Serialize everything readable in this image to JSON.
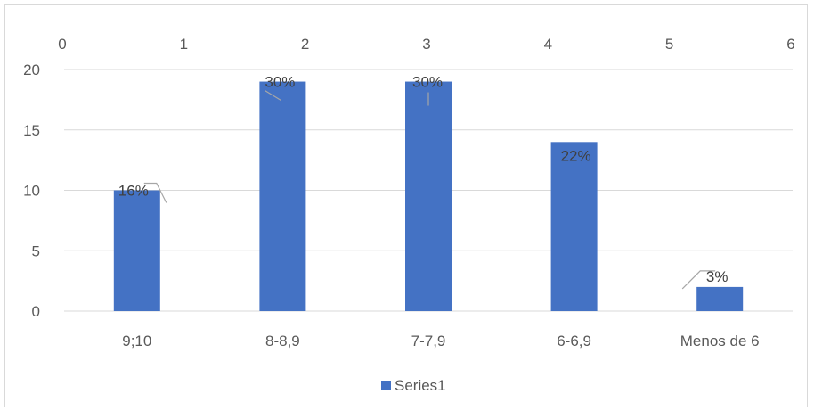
{
  "chart_data": {
    "type": "bar",
    "categories": [
      "9;10",
      "8-8,9",
      "7-7,9",
      "6-6,9",
      "Menos de 6"
    ],
    "series": [
      {
        "name": "Series1",
        "values": [
          10,
          19,
          19,
          14,
          2
        ],
        "data_labels": [
          "16%",
          "30%",
          "30%",
          "22%",
          "3%"
        ],
        "color": "#4472c4"
      }
    ],
    "ylim": [
      0,
      20
    ],
    "yticks": [
      "0",
      "5",
      "10",
      "15",
      "20"
    ],
    "secondary_x_ticks": [
      "0",
      "1",
      "2",
      "3",
      "4",
      "5",
      "6"
    ],
    "grid": true,
    "legend": "bottom",
    "title": "",
    "xlabel": "",
    "ylabel": ""
  }
}
